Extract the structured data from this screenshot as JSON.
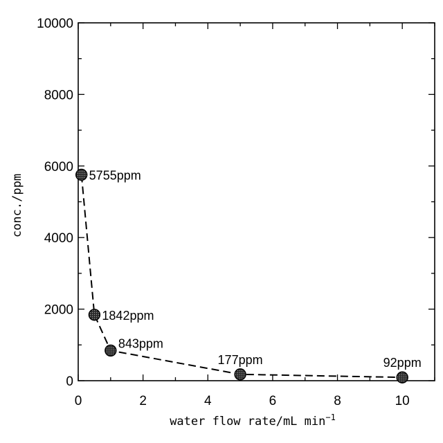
{
  "chart_data": {
    "type": "line",
    "xlabel": "water flow rate/mL min",
    "xlabel_sup": "−1",
    "ylabel": "conc./ppm",
    "xlim": [
      0,
      11
    ],
    "ylim": [
      0,
      10000
    ],
    "xticks": [
      0,
      2,
      4,
      6,
      8,
      10
    ],
    "yticks": [
      0,
      2000,
      4000,
      6000,
      8000,
      10000
    ],
    "grid": false,
    "line_style": "dashed",
    "series": [
      {
        "x": [
          0.1,
          0.5,
          1,
          5,
          10
        ],
        "y": [
          5755,
          1842,
          843,
          177,
          92
        ],
        "labels": [
          "5755ppm",
          "1842ppm",
          "843ppm",
          "177ppm",
          "92ppm"
        ]
      }
    ],
    "colors": {
      "line": "#000000",
      "marker_fill": "#3a3a3a",
      "marker_stroke": "#000000"
    }
  }
}
